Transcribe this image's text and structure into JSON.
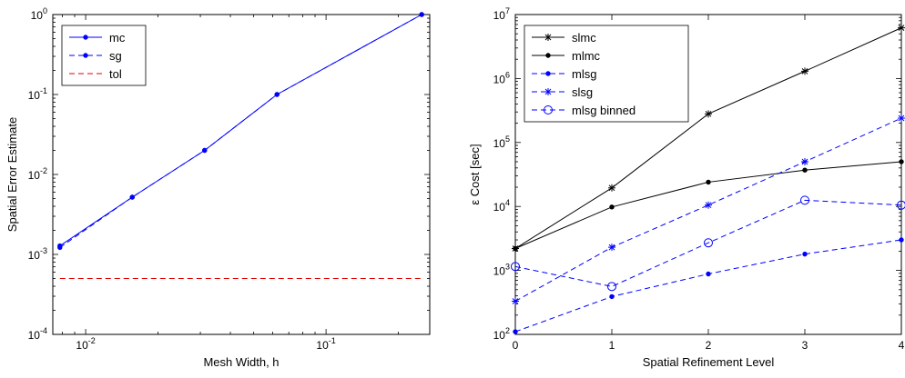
{
  "chart_data": [
    {
      "type": "line",
      "xscale": "log",
      "yscale": "log",
      "xlabel": "Mesh Width, h",
      "ylabel": "Spatial Error Estimate",
      "xlim": [
        0.0073,
        0.27
      ],
      "ylim": [
        0.0001,
        1
      ],
      "xticks": [
        {
          "value": 0.01,
          "base": "10",
          "exp": "-2"
        },
        {
          "value": 0.1,
          "base": "10",
          "exp": "-1"
        }
      ],
      "yticks": [
        {
          "value": 0.0001,
          "base": "10",
          "exp": "-4"
        },
        {
          "value": 0.001,
          "base": "10",
          "exp": "-3"
        },
        {
          "value": 0.01,
          "base": "10",
          "exp": "-2"
        },
        {
          "value": 0.1,
          "base": "10",
          "exp": "-1"
        },
        {
          "value": 1,
          "base": "10",
          "exp": "0"
        }
      ],
      "legend_position": "top-left",
      "series": [
        {
          "name": "mc",
          "color": "#0000ff",
          "line": "solid",
          "marker": "dot",
          "x": [
            0.0078125,
            0.015625,
            0.03125,
            0.0625,
            0.25
          ],
          "y": [
            0.00128,
            0.0052,
            0.02,
            0.1,
            1.0
          ]
        },
        {
          "name": "sg",
          "color": "#0000ff",
          "line": "dashed",
          "marker": "dot",
          "x": [
            0.0078125,
            0.015625,
            0.03125,
            0.0625,
            0.25
          ],
          "y": [
            0.00122,
            0.0052,
            0.02,
            0.1,
            1.0
          ]
        },
        {
          "name": "tol",
          "color": "#e00000",
          "line": "dashed",
          "marker": "none",
          "x": [
            0.0078125,
            0.25
          ],
          "y": [
            0.0005,
            0.0005
          ]
        }
      ]
    },
    {
      "type": "line",
      "xscale": "linear",
      "yscale": "log",
      "xlabel": "Spatial Refinement Level",
      "ylabel": "ε Cost [sec]",
      "xlim": [
        0,
        4
      ],
      "ylim": [
        100,
        10000000
      ],
      "xticks": [
        {
          "value": 0,
          "label": "0"
        },
        {
          "value": 1,
          "label": "1"
        },
        {
          "value": 2,
          "label": "2"
        },
        {
          "value": 3,
          "label": "3"
        },
        {
          "value": 4,
          "label": "4"
        }
      ],
      "yticks": [
        {
          "value": 100,
          "base": "10",
          "exp": "2"
        },
        {
          "value": 1000,
          "base": "10",
          "exp": "3"
        },
        {
          "value": 10000,
          "base": "10",
          "exp": "4"
        },
        {
          "value": 100000,
          "base": "10",
          "exp": "5"
        },
        {
          "value": 1000000,
          "base": "10",
          "exp": "6"
        },
        {
          "value": 10000000,
          "base": "10",
          "exp": "7"
        }
      ],
      "legend_position": "top-left",
      "series": [
        {
          "name": "slmc",
          "color": "#000000",
          "line": "solid",
          "marker": "star",
          "x": [
            0,
            1,
            2,
            3,
            4
          ],
          "y": [
            2200,
            19500,
            280000,
            1300000,
            6200000
          ]
        },
        {
          "name": "mlmc",
          "color": "#000000",
          "line": "solid",
          "marker": "dot",
          "x": [
            0,
            1,
            2,
            3,
            4
          ],
          "y": [
            2200,
            9800,
            24000,
            37000,
            50000
          ]
        },
        {
          "name": "mlsg",
          "color": "#0000ff",
          "line": "dashed",
          "marker": "dot",
          "x": [
            0,
            1,
            2,
            3,
            4
          ],
          "y": [
            110,
            390,
            880,
            1800,
            3000
          ]
        },
        {
          "name": "slsg",
          "color": "#0000ff",
          "line": "dashed",
          "marker": "star",
          "x": [
            0,
            1,
            2,
            3,
            4
          ],
          "y": [
            330,
            2300,
            10500,
            50000,
            240000
          ]
        },
        {
          "name": "mlsg binned",
          "color": "#0000ff",
          "line": "dashed",
          "marker": "circle",
          "x": [
            0,
            1,
            2,
            3,
            4
          ],
          "y": [
            1150,
            560,
            2700,
            12500,
            10500
          ]
        }
      ]
    }
  ]
}
